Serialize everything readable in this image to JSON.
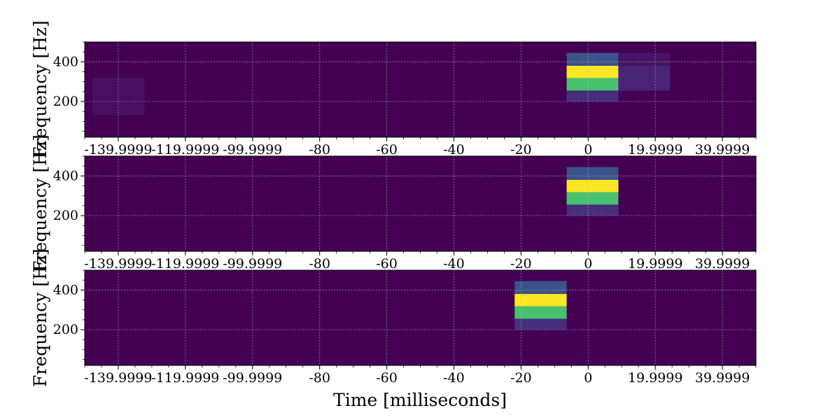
{
  "chart_data": {
    "type": "heatmap",
    "xlabel": "Time [milliseconds]",
    "ylabel": "Frequency [Hz]",
    "xlim": [
      -150,
      50
    ],
    "ylim": [
      20,
      500
    ],
    "xticks": [
      -140,
      -120,
      -100,
      -80,
      -60,
      -40,
      -20,
      0,
      20,
      40
    ],
    "xtick_labels": [
      "-139.9999",
      "-119.9999",
      "-99.9999",
      "-80",
      "-60",
      "-40",
      "-20",
      "0",
      "19.9999",
      "39.9999"
    ],
    "yticks": [
      200,
      400
    ],
    "ytick_labels": [
      "200",
      "400"
    ],
    "grid": true,
    "background_color": "#440154",
    "panels": [
      {
        "cells": [
          {
            "x0": -6.4,
            "x1": 9.0,
            "y0": 380,
            "y1": 445,
            "color": "#3b528b"
          },
          {
            "x0": -6.4,
            "x1": 9.0,
            "y0": 318,
            "y1": 380,
            "color": "#fde725"
          },
          {
            "x0": -6.4,
            "x1": 9.0,
            "y0": 255,
            "y1": 318,
            "color": "#48c16e"
          },
          {
            "x0": -6.4,
            "x1": 9.0,
            "y0": 200,
            "y1": 255,
            "color": "#472f7d"
          },
          {
            "x0": 9.0,
            "x1": 24.4,
            "y0": 380,
            "y1": 445,
            "color": "#471365"
          },
          {
            "x0": 9.0,
            "x1": 24.4,
            "y0": 255,
            "y1": 380,
            "color": "#482475"
          },
          {
            "x0": -147.7,
            "x1": -132.3,
            "y0": 130,
            "y1": 320,
            "color": "#470e61"
          }
        ]
      },
      {
        "cells": [
          {
            "x0": -6.4,
            "x1": 9.0,
            "y0": 380,
            "y1": 445,
            "color": "#3b528b"
          },
          {
            "x0": -6.4,
            "x1": 9.0,
            "y0": 318,
            "y1": 380,
            "color": "#fde725"
          },
          {
            "x0": -6.4,
            "x1": 9.0,
            "y0": 255,
            "y1": 318,
            "color": "#48c16e"
          },
          {
            "x0": -6.4,
            "x1": 9.0,
            "y0": 200,
            "y1": 255,
            "color": "#472f7d"
          }
        ]
      },
      {
        "cells": [
          {
            "x0": -21.9,
            "x1": -6.4,
            "y0": 380,
            "y1": 445,
            "color": "#3b528b"
          },
          {
            "x0": -21.9,
            "x1": -6.4,
            "y0": 318,
            "y1": 380,
            "color": "#fde725"
          },
          {
            "x0": -21.9,
            "x1": -6.4,
            "y0": 255,
            "y1": 318,
            "color": "#48c16e"
          },
          {
            "x0": -21.9,
            "x1": -6.4,
            "y0": 200,
            "y1": 255,
            "color": "#472f7d"
          }
        ]
      }
    ]
  }
}
